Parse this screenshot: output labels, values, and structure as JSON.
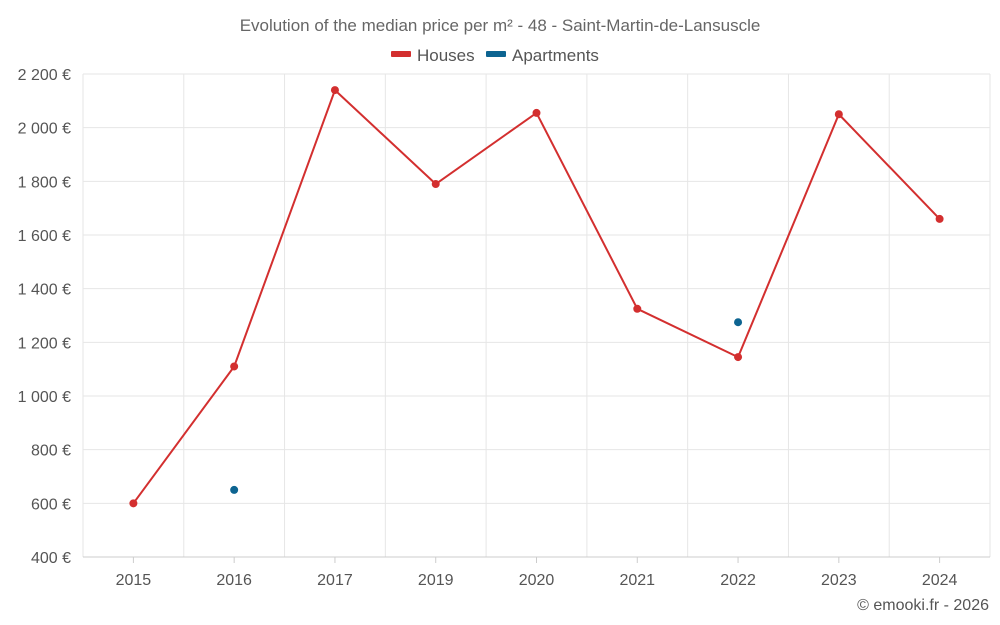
{
  "chart_data": {
    "type": "line",
    "title": "Evolution of the median price per m² - 48 - Saint-Martin-de-Lansuscle",
    "categories": [
      "2015",
      "2016",
      "2017",
      "2019",
      "2020",
      "2021",
      "2022",
      "2023",
      "2024"
    ],
    "series": [
      {
        "name": "Houses",
        "color": "#d32f2f",
        "values": [
          600,
          1110,
          2140,
          1790,
          2055,
          1325,
          1145,
          2050,
          1660
        ]
      },
      {
        "name": "Apartments",
        "color": "#0d6491",
        "values": [
          null,
          650,
          null,
          null,
          null,
          null,
          1275,
          null,
          null
        ]
      }
    ],
    "y_ticks": [
      "400 €",
      "600 €",
      "800 €",
      "1 000 €",
      "1 200 €",
      "1 400 €",
      "1 600 €",
      "1 800 €",
      "2 000 €",
      "2 200 €"
    ],
    "ylim": [
      400,
      2200
    ],
    "xlabel": "",
    "ylabel": "",
    "grid": true,
    "legend_position": "top-center"
  },
  "credit": "© emooki.fr - 2026"
}
